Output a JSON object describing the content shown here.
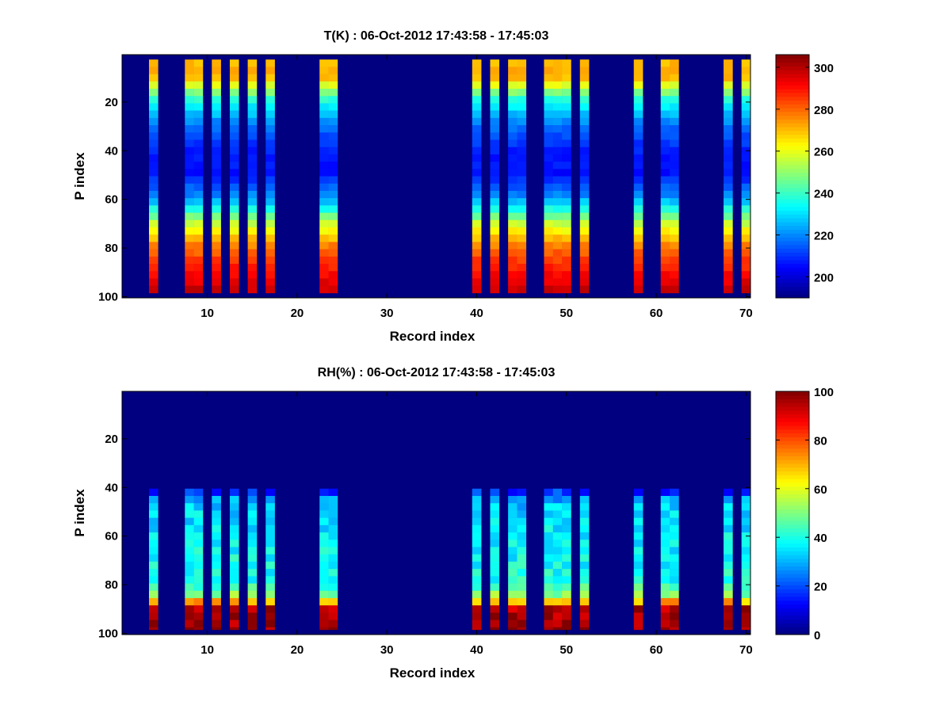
{
  "chart_data": [
    {
      "type": "heatmap",
      "title": "T(K) : 06-Oct-2012 17:43:58 - 17:45:03",
      "xlabel": "Record index",
      "ylabel": "P index",
      "xlim": [
        0.5,
        70.5
      ],
      "ylim": [
        0.5,
        100.5
      ],
      "y_reversed": true,
      "xticks": [
        10,
        20,
        30,
        40,
        50,
        60,
        70
      ],
      "yticks": [
        20,
        40,
        60,
        80,
        100
      ],
      "colormap": "jet",
      "color_range": [
        190,
        306
      ],
      "colorbar_ticks": [
        200,
        220,
        240,
        260,
        280,
        300
      ],
      "background_value": 190,
      "valid_p_range": [
        3,
        98
      ],
      "active_records": [
        4,
        8,
        9,
        11,
        13,
        15,
        17,
        23,
        24,
        40,
        42,
        44,
        45,
        48,
        49,
        50,
        52,
        58,
        61,
        62,
        68,
        70
      ],
      "profile_p": [
        3,
        10,
        20,
        30,
        40,
        50,
        60,
        70,
        80,
        90,
        98
      ],
      "profile_values": [
        270,
        272,
        236,
        218,
        208,
        206,
        222,
        255,
        278,
        290,
        298
      ]
    },
    {
      "type": "heatmap",
      "title": "RH(%) : 06-Oct-2012 17:43:58 - 17:45:03",
      "xlabel": "Record index",
      "ylabel": "P index",
      "xlim": [
        0.5,
        70.5
      ],
      "ylim": [
        0.5,
        100.5
      ],
      "y_reversed": true,
      "xticks": [
        10,
        20,
        30,
        40,
        50,
        60,
        70
      ],
      "yticks": [
        20,
        40,
        60,
        80,
        100
      ],
      "colormap": "jet",
      "color_range": [
        0,
        100
      ],
      "colorbar_ticks": [
        0,
        20,
        40,
        60,
        80,
        100
      ],
      "background_value": 0,
      "valid_p_range": [
        41,
        98
      ],
      "active_records": [
        4,
        8,
        9,
        11,
        13,
        15,
        17,
        23,
        24,
        40,
        42,
        44,
        45,
        48,
        49,
        50,
        52,
        58,
        61,
        62,
        68,
        70
      ],
      "profile_p": [
        41,
        45,
        50,
        60,
        70,
        80,
        86,
        90,
        98
      ],
      "profile_values": [
        12,
        28,
        34,
        36,
        38,
        40,
        55,
        95,
        98
      ]
    }
  ]
}
